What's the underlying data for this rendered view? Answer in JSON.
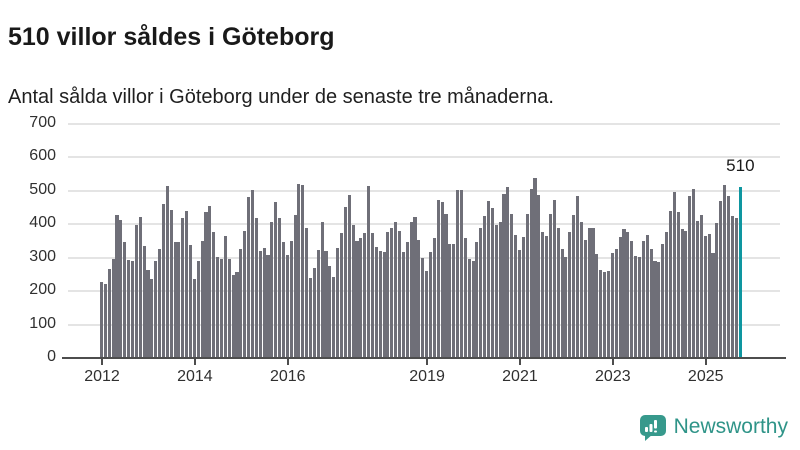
{
  "header": {
    "title": "510 villor såldes i Göteborg",
    "subtitle": "Antal sålda villor i Göteborg under de senaste tre månaderna."
  },
  "branding": {
    "name": "Newsworthy",
    "color": "#37998c"
  },
  "colors": {
    "bar": "#6f6f78",
    "highlight": "#0e96a0",
    "grid": "#e4e4e4",
    "axis": "#4d4d4d",
    "text": "#191919",
    "tick_label": "#303030"
  },
  "chart_data": {
    "type": "bar",
    "title": "510 villor såldes i Göteborg",
    "subtitle": "Antal sålda villor i Göteborg under de senaste tre månaderna.",
    "xlabel": "",
    "ylabel": "",
    "ylim": [
      0,
      700
    ],
    "y_ticks": [
      0,
      100,
      200,
      300,
      400,
      500,
      600,
      700
    ],
    "x_tick_labels": [
      "2012",
      "2014",
      "2016",
      "2019",
      "2021",
      "2023",
      "2025"
    ],
    "frequency": "monthly",
    "start": "2012-01",
    "grid": true,
    "legend": false,
    "values": [
      228,
      222,
      265,
      297,
      428,
      412,
      345,
      292,
      290,
      398,
      420,
      334,
      262,
      237,
      290,
      325,
      459,
      514,
      442,
      345,
      345,
      419,
      439,
      337,
      237,
      290,
      349,
      437,
      455,
      377,
      302,
      297,
      364,
      296,
      248,
      258,
      325,
      380,
      480,
      501,
      417,
      318,
      327,
      307,
      407,
      465,
      417,
      347,
      307,
      349,
      427,
      519,
      517,
      388,
      238,
      270,
      323,
      406,
      320,
      276,
      243,
      328,
      373,
      450,
      488,
      398,
      350,
      358,
      373,
      514,
      373,
      330,
      320,
      317,
      375,
      387,
      405,
      380,
      315,
      345,
      407,
      420,
      352,
      300,
      260,
      315,
      359,
      472,
      465,
      430,
      340,
      340,
      502,
      502,
      359,
      296,
      290,
      347,
      387,
      425,
      470,
      447,
      397,
      405,
      489,
      509,
      430,
      367,
      322,
      362,
      430,
      505,
      537,
      487,
      375,
      365,
      430,
      472,
      389,
      325,
      302,
      375,
      427,
      485,
      407,
      352,
      389,
      389,
      310,
      262,
      258,
      260,
      313,
      325,
      360,
      384,
      377,
      350,
      303,
      301,
      348,
      368,
      325,
      291,
      288,
      341,
      376,
      439,
      496,
      436,
      384,
      380,
      483,
      503,
      408,
      426,
      363,
      371,
      313,
      403,
      468,
      515,
      483,
      425,
      418,
      510
    ],
    "highlight": {
      "index": 165,
      "value": 510,
      "label": "510"
    }
  }
}
